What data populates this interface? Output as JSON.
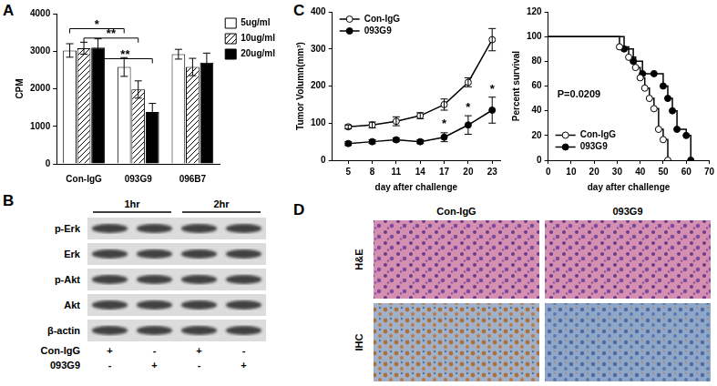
{
  "chart_data": [
    {
      "panel": "A",
      "type": "bar",
      "categories": [
        "Con-IgG",
        "093G9",
        "096B7"
      ],
      "series": [
        {
          "name": "5ug/ml",
          "color": "#ffffff",
          "values": [
            3020,
            2580,
            2920
          ],
          "errors": [
            180,
            250,
            130
          ]
        },
        {
          "name": "10ug/ml",
          "color": "#ffffff",
          "marker": "hatch",
          "values": [
            3080,
            1980,
            2580
          ],
          "errors": [
            160,
            230,
            230
          ]
        },
        {
          "name": "20ug/ml",
          "color": "#000000",
          "values": [
            3100,
            1380,
            2700
          ],
          "errors": [
            230,
            230,
            250
          ]
        }
      ],
      "y_label": "CPM",
      "ylim": [
        0,
        4000
      ],
      "yticks": [
        0,
        1000,
        2000,
        3000,
        4000
      ],
      "grid": false,
      "legend": "top-right",
      "annotations": [
        {
          "text": "*",
          "from": [
            "Con-IgG",
            "5ug/ml"
          ],
          "to": [
            "093G9",
            "5ug/ml"
          ],
          "y": 3600
        },
        {
          "text": "**",
          "from": [
            "Con-IgG",
            "10ug/ml"
          ],
          "to": [
            "093G9",
            "10ug/ml"
          ],
          "y": 3350
        },
        {
          "text": "**",
          "from": [
            "Con-IgG",
            "20ug/ml"
          ],
          "to": [
            "093G9",
            "20ug/ml"
          ],
          "y": 2800
        }
      ]
    },
    {
      "panel": "C",
      "type": "line",
      "x_label": "day after challenge",
      "y_label": "Tumor Volumn(mm³)",
      "xlim": [
        3,
        24
      ],
      "xticks": [
        5,
        8,
        11,
        14,
        17,
        20,
        23
      ],
      "ylim": [
        0,
        400
      ],
      "yticks": [
        0,
        100,
        200,
        300,
        400
      ],
      "grid": false,
      "legend": "top-left",
      "series": [
        {
          "name": "Con-IgG",
          "color": "#000000",
          "marker": "open_circle",
          "x": [
            5,
            8,
            11,
            14,
            17,
            20,
            23
          ],
          "values": [
            90,
            95,
            105,
            120,
            150,
            210,
            325
          ],
          "errors": [
            5,
            8,
            12,
            8,
            15,
            12,
            30
          ]
        },
        {
          "name": "093G9",
          "color": "#000000",
          "marker": "filled_circle",
          "x": [
            5,
            8,
            11,
            14,
            17,
            20,
            23
          ],
          "values": [
            45,
            50,
            55,
            50,
            62,
            95,
            135
          ],
          "errors": [
            5,
            5,
            5,
            5,
            12,
            25,
            35
          ]
        }
      ],
      "annotations": [
        {
          "text": "*",
          "x": 17,
          "y": 90
        },
        {
          "text": "*",
          "x": 20,
          "y": 135
        },
        {
          "text": "*",
          "x": 23,
          "y": 185
        }
      ]
    },
    {
      "type": "line",
      "line_style": "step",
      "x_label": "day after challenge",
      "y_label": "Percent survival",
      "xlim": [
        0,
        70
      ],
      "xticks": [
        0,
        10,
        20,
        30,
        40,
        50,
        60,
        70
      ],
      "ylim": [
        0,
        120
      ],
      "yticks": [
        0,
        20,
        40,
        60,
        80,
        100,
        120
      ],
      "grid": false,
      "legend": "bottom-left",
      "series": [
        {
          "name": "Con-IgG",
          "color": "#000000",
          "marker": "open_circle",
          "x": [
            0,
            31,
            35,
            38,
            40,
            42,
            44,
            46,
            48,
            50,
            52
          ],
          "values": [
            100,
            91.7,
            83.3,
            75,
            66.7,
            58.3,
            50,
            41.7,
            25,
            16.7,
            0
          ]
        },
        {
          "name": "093G9",
          "color": "#000000",
          "marker": "filled_circle",
          "x": [
            0,
            33,
            37,
            41,
            46,
            50,
            52,
            54,
            56,
            60,
            62
          ],
          "values": [
            100,
            90,
            80,
            70,
            70,
            60,
            50,
            40,
            25,
            20,
            0
          ]
        }
      ],
      "annotations": [
        {
          "text": "P=0.0209",
          "x": 4,
          "y": 52
        }
      ]
    }
  ],
  "blot": {
    "panel": "B",
    "time_points": [
      "1hr",
      "2hr"
    ],
    "rows": [
      "p-Erk",
      "Erk",
      "p-Akt",
      "Akt",
      "β-actin"
    ],
    "treatments": [
      {
        "name": "Con-IgG",
        "lanes": [
          "+",
          "-",
          "+",
          "-"
        ]
      },
      {
        "name": "093G9",
        "lanes": [
          "-",
          "+",
          "-",
          "+"
        ]
      }
    ]
  },
  "histology": {
    "panel": "D",
    "columns": [
      "Con-IgG",
      "093G9"
    ],
    "rows": [
      "H&E",
      "IHC"
    ]
  }
}
